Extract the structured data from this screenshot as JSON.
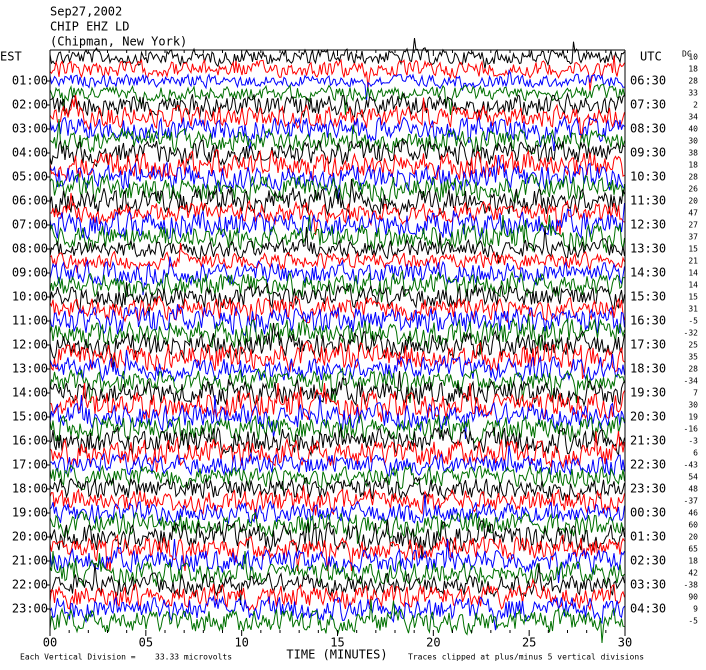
{
  "header": {
    "date": "Sep27,2002",
    "station": "CHIP EHZ LD",
    "location": "(Chipman, New York)"
  },
  "left_axis_title": "EST",
  "right_axis_title": "UTC",
  "dc_title": "DC",
  "left_labels": [
    "01:00",
    "02:00",
    "03:00",
    "04:00",
    "05:00",
    "06:00",
    "07:00",
    "08:00",
    "09:00",
    "10:00",
    "11:00",
    "12:00",
    "13:00",
    "14:00",
    "15:00",
    "16:00",
    "17:00",
    "18:00",
    "19:00",
    "20:00",
    "21:00",
    "22:00",
    "23:00"
  ],
  "right_labels": [
    "06:30",
    "07:30",
    "08:30",
    "09:30",
    "10:30",
    "11:30",
    "12:30",
    "13:30",
    "14:30",
    "15:30",
    "16:30",
    "17:30",
    "18:30",
    "19:30",
    "20:30",
    "21:30",
    "22:30",
    "23:30",
    "00:30",
    "01:30",
    "02:30",
    "03:30",
    "04:30"
  ],
  "dc_offsets": [
    10,
    18,
    28,
    33,
    2,
    34,
    40,
    30,
    38,
    18,
    28,
    26,
    20,
    47,
    27,
    37,
    15,
    21,
    14,
    14,
    15,
    31,
    -5,
    -32,
    25,
    35,
    28,
    -34,
    7,
    30,
    19,
    -16,
    -3,
    6,
    -43,
    54,
    48,
    -37,
    46,
    60,
    20,
    65,
    18,
    42,
    -38,
    90,
    9,
    -5
  ],
  "x_ticks": [
    "00",
    "05",
    "10",
    "15",
    "20",
    "25",
    "30"
  ],
  "x_axis_title": "TIME (MINUTES)",
  "footer": {
    "division": "Each Vertical Division =",
    "division_value": "33.33 microvolts",
    "clip_note": "Traces clipped at plus/minus 5 vertical divisions"
  }
}
